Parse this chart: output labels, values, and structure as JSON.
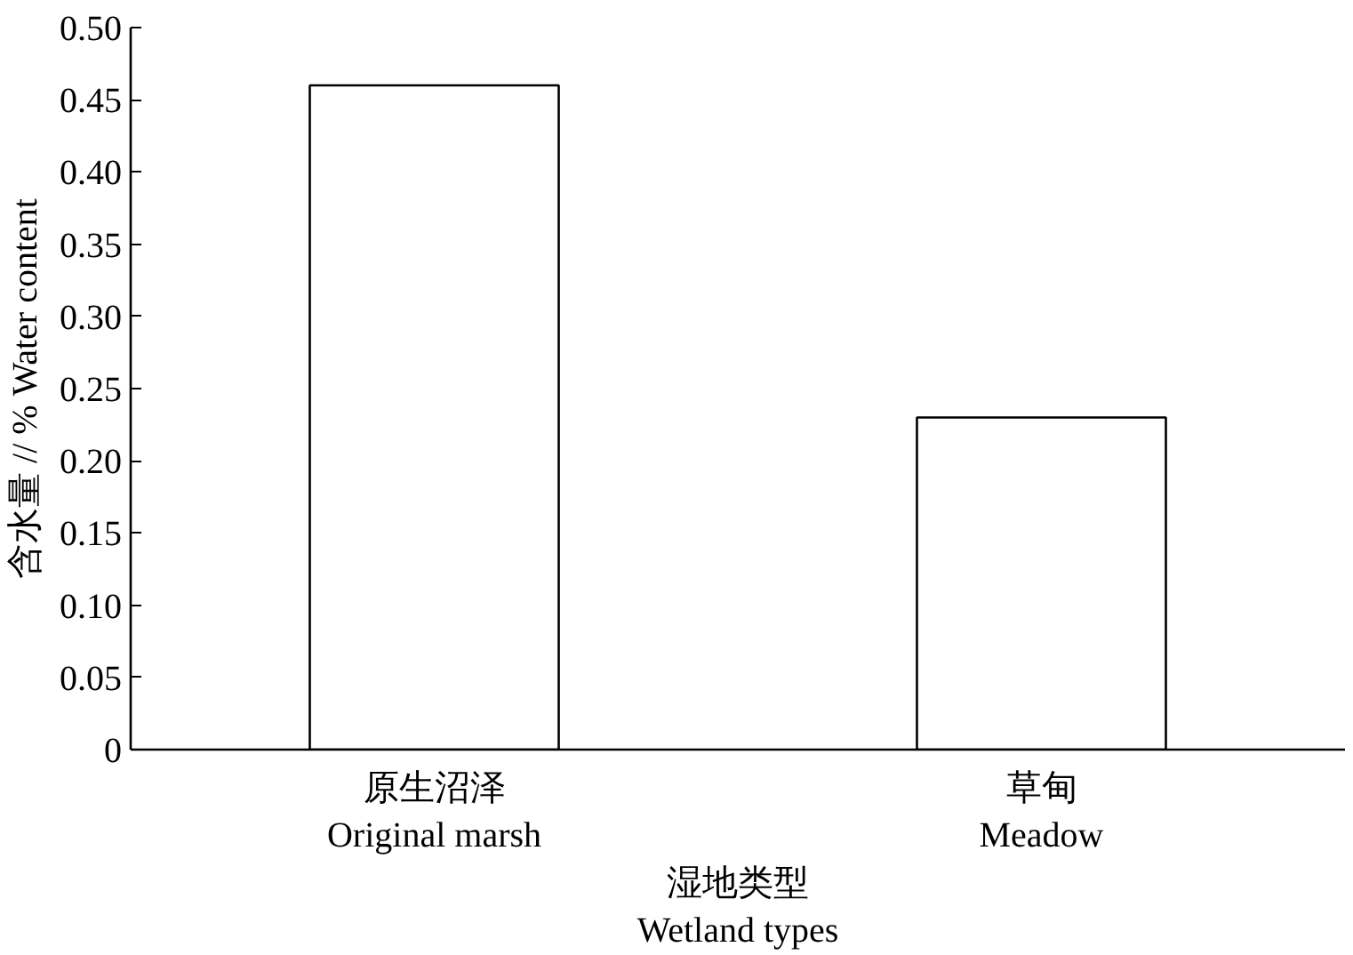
{
  "chart_data": {
    "type": "bar",
    "xlabel": "湿地类型\nWetland types",
    "ylabel": "含水量 // % Water content",
    "categories": [
      "原生沼泽\nOriginal marsh",
      "草甸\nMeadow"
    ],
    "values": [
      0.46,
      0.23
    ],
    "color": "#ffffff",
    "ylim": [
      0,
      0.5
    ],
    "yticks": [
      0,
      {
        "value": 0.05,
        "label": "0.05"
      },
      {
        "value": 0.1,
        "label": "0.10"
      },
      {
        "value": 0.15,
        "label": "0.15"
      },
      {
        "value": 0.2,
        "label": "0.20"
      },
      {
        "value": 0.25,
        "label": "0.25"
      },
      {
        "value": 0.3,
        "label": "0.30"
      },
      {
        "value": 0.35,
        "label": "0.35"
      },
      {
        "value": 0.4,
        "label": "0.40"
      },
      {
        "value": 0.45,
        "label": "0.45"
      },
      {
        "value": 0.5,
        "label": "0.50"
      }
    ],
    "grid": false
  }
}
